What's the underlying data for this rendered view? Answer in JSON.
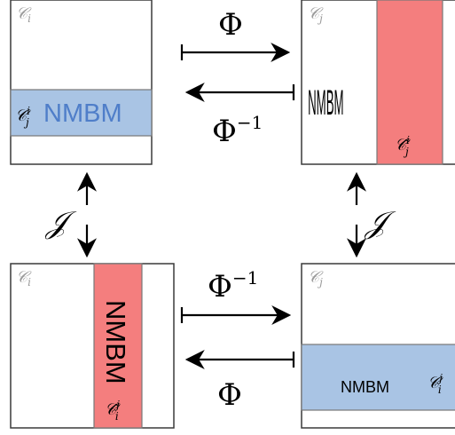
{
  "corners": {
    "tl": "𝒞",
    "tl_sub": "i",
    "tr": "𝒞",
    "tr_sub": "j",
    "bl": "𝒞",
    "bl_sub": "i",
    "br": "𝒞",
    "br_sub": "j"
  },
  "tiles": {
    "tl_text": "NMBM",
    "tl_label": "𝒞",
    "tl_label_sup": "i",
    "tl_label_sub": "j",
    "tr_text": "NMBM",
    "tr_label": "𝒞̂",
    "tr_label_sup": "i",
    "tr_label_sub": "j",
    "bl_text": "NMBM",
    "bl_label": "𝒞̂",
    "bl_label_sup": "j",
    "bl_label_sub": "i",
    "br_text": "NMBM",
    "br_label": "𝒞",
    "br_label_sup": "j",
    "br_label_sub": "i"
  },
  "maps": {
    "top": "Φ",
    "top_inverse": "Φ",
    "top_inverse_sup": "−1",
    "left_vertical": "𝒥",
    "right_vertical": "𝒥",
    "bottom_inverse": "Φ",
    "bottom_inverse_sup": "−1",
    "bottom": "Φ"
  },
  "colors": {
    "blue": "#a9c4e4",
    "blue_text": "#4f7ec9",
    "red": "#f47e7e",
    "red_text": "#d94545",
    "border": "#3a3a3a",
    "strip_border": "#777777"
  }
}
